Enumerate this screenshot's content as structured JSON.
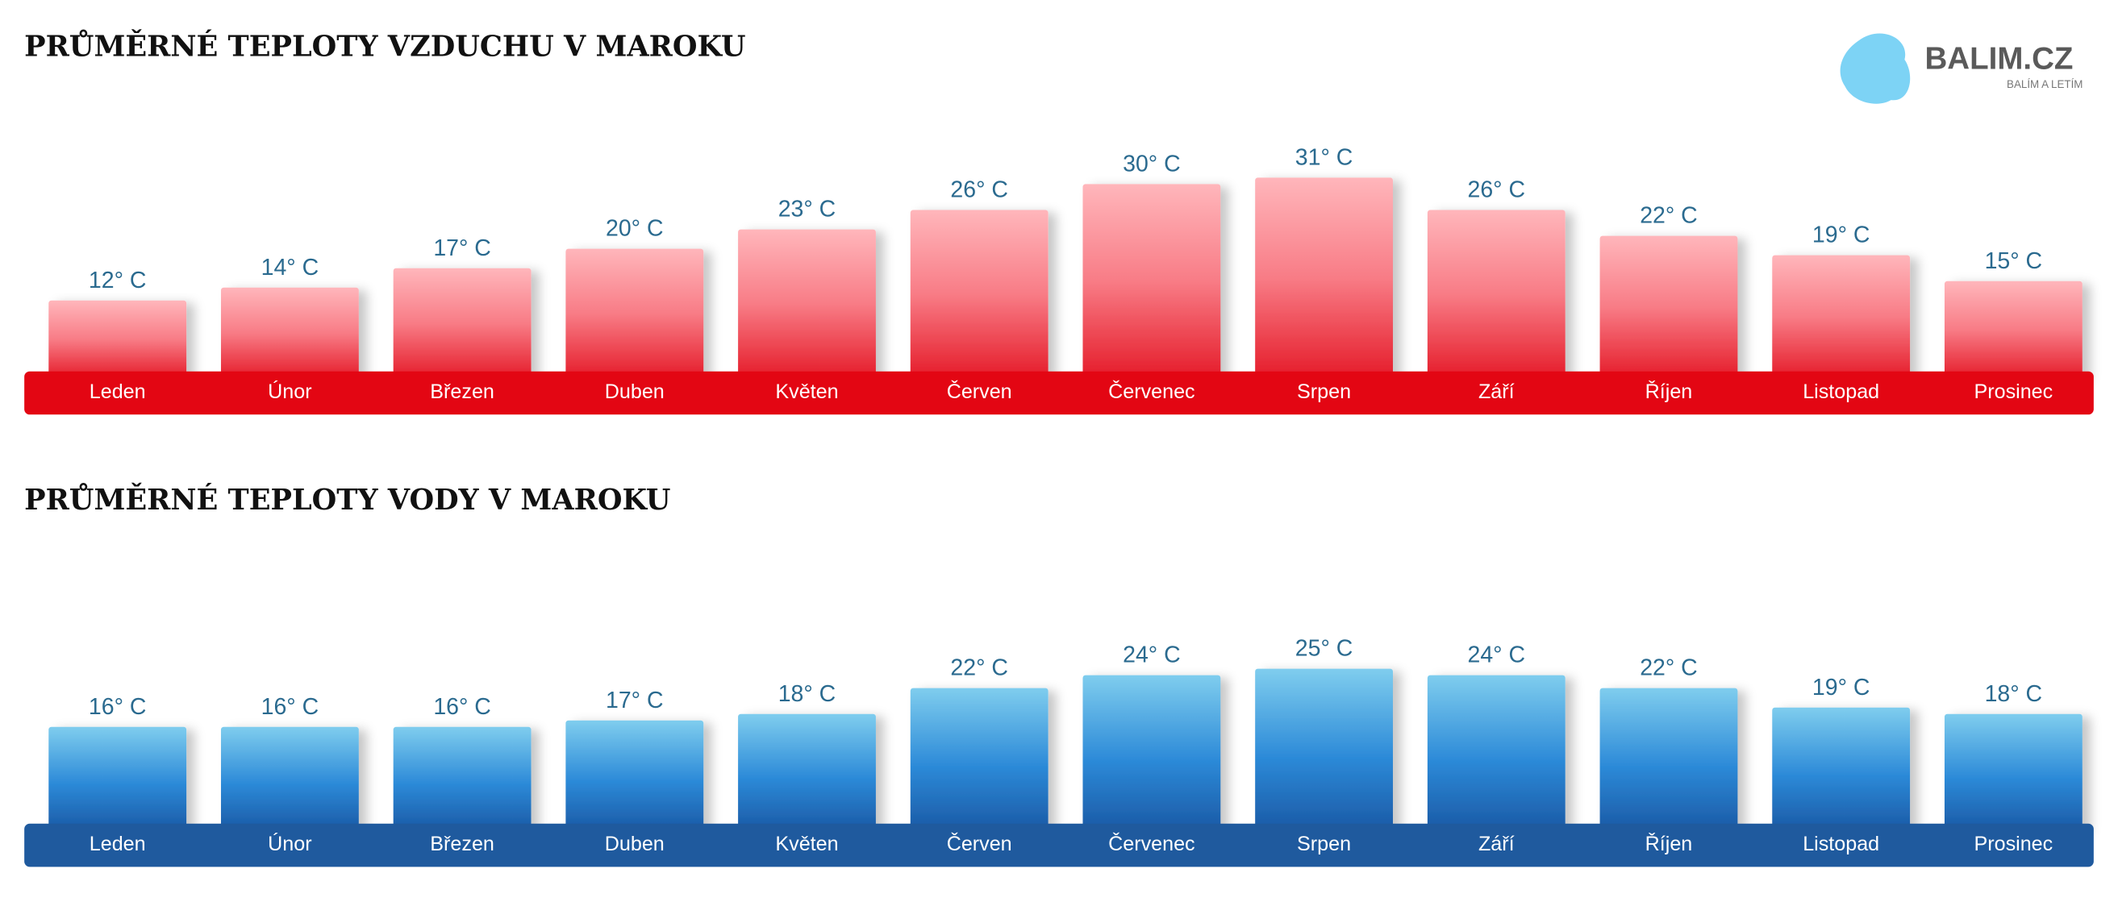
{
  "chart_data": [
    {
      "type": "bar",
      "title": "PRŮMĚRNÉ TEPLOTY VZDUCHU V MAROKU",
      "categories": [
        "Leden",
        "Únor",
        "Březen",
        "Duben",
        "Květen",
        "Červen",
        "Červenec",
        "Srpen",
        "Září",
        "Říjen",
        "Listopad",
        "Prosinec"
      ],
      "values": [
        12,
        14,
        17,
        20,
        23,
        26,
        30,
        31,
        26,
        22,
        19,
        15
      ],
      "value_labels": [
        "12° C",
        "14° C",
        "17° C",
        "20° C",
        "23° C",
        "26° C",
        "30° C",
        "31° C",
        "26° C",
        "22° C",
        "19° C",
        "15° C"
      ],
      "color": "#e30613"
    },
    {
      "type": "bar",
      "title": "PRŮMĚRNÉ TEPLOTY VODY V MAROKU",
      "categories": [
        "Leden",
        "Únor",
        "Březen",
        "Duben",
        "Květen",
        "Červen",
        "Červenec",
        "Srpen",
        "Září",
        "Říjen",
        "Listopad",
        "Prosinec"
      ],
      "values": [
        16,
        16,
        16,
        17,
        18,
        22,
        24,
        25,
        24,
        22,
        19,
        18
      ],
      "value_labels": [
        "16° C",
        "16° C",
        "16° C",
        "17° C",
        "18° C",
        "22° C",
        "24° C",
        "25° C",
        "24° C",
        "22° C",
        "19° C",
        "18° C"
      ],
      "color": "#1f5a9e"
    }
  ],
  "logo": {
    "name": "BALIM.CZ",
    "tagline": "BALÍM A LETÍM"
  }
}
